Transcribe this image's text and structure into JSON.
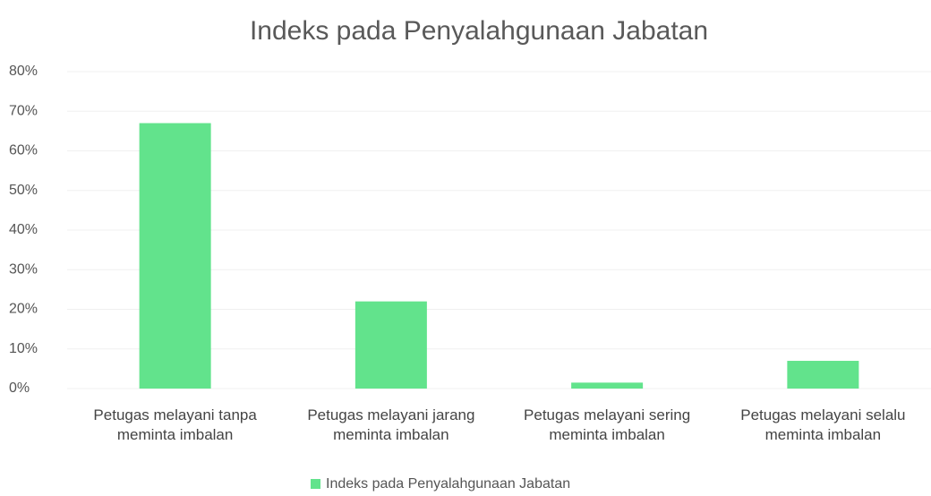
{
  "chart_data": {
    "type": "bar",
    "title": "Indeks pada Penyalahgunaan Jabatan",
    "categories": [
      "Petugas melayani tanpa meminta imbalan",
      "Petugas melayani jarang meminta imbalan",
      "Petugas melayani sering meminta imbalan",
      "Petugas melayani selalu meminta imbalan"
    ],
    "series": [
      {
        "name": "Indeks pada Penyalahgunaan Jabatan",
        "color": "#62e38c",
        "values": [
          67,
          22,
          1.5,
          7
        ]
      }
    ],
    "ylim": [
      0,
      80
    ],
    "yticks": [
      {
        "value": 0,
        "label": "0%"
      },
      {
        "value": 10,
        "label": "10%"
      },
      {
        "value": 20,
        "label": "20%"
      },
      {
        "value": 30,
        "label": "30%"
      },
      {
        "value": 40,
        "label": "40%"
      },
      {
        "value": 50,
        "label": "50%"
      },
      {
        "value": 60,
        "label": "60%"
      },
      {
        "value": 70,
        "label": "70%"
      },
      {
        "value": 80,
        "label": "80%"
      }
    ],
    "grid": true,
    "legend": "bottom"
  }
}
